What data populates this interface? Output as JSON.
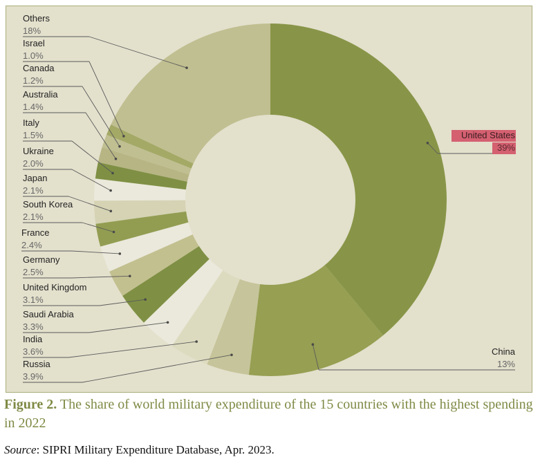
{
  "chart_data": {
    "type": "pie",
    "variant": "donut",
    "categories": [
      "United States",
      "China",
      "Russia",
      "India",
      "Saudi Arabia",
      "United Kingdom",
      "Germany",
      "France",
      "South Korea",
      "Japan",
      "Ukraine",
      "Italy",
      "Australia",
      "Canada",
      "Israel",
      "Others"
    ],
    "value_labels": [
      "39%",
      "13%",
      "3.9%",
      "3.6%",
      "3.3%",
      "3.1%",
      "2.5%",
      "2.4%",
      "2.1%",
      "2.1%",
      "2.0%",
      "1.5%",
      "1.4%",
      "1.2%",
      "1.0%",
      "18%"
    ],
    "values": [
      39,
      13,
      3.9,
      3.6,
      3.3,
      3.1,
      2.5,
      2.4,
      2.1,
      2.1,
      2.0,
      1.5,
      1.4,
      1.2,
      1.0,
      18
    ],
    "colors": [
      "#889548",
      "#969f52",
      "#c6c49a",
      "#dddbbf",
      "#ebe9dc",
      "#7f9044",
      "#c3c090",
      "#ebe9dc",
      "#929d52",
      "#d5d3b4",
      "#ebe9dc",
      "#7f9044",
      "#b7b584",
      "#bfbf92",
      "#a4a966",
      "#c0bf91"
    ],
    "label_placement": "United States and China on the right, all other countries on the left",
    "highlighted": "United States",
    "highlight_color": "#d46070",
    "background_color": "#e3e0cc",
    "legend": "none"
  },
  "figure": {
    "caption_label": "Figure 2.",
    "caption_text": " The share of world military expenditure of the 15 countries with the highest spending in 2022",
    "source_label": "Source",
    "source_text": ": SIPRI Military Expenditure Database, Apr. 2023."
  }
}
